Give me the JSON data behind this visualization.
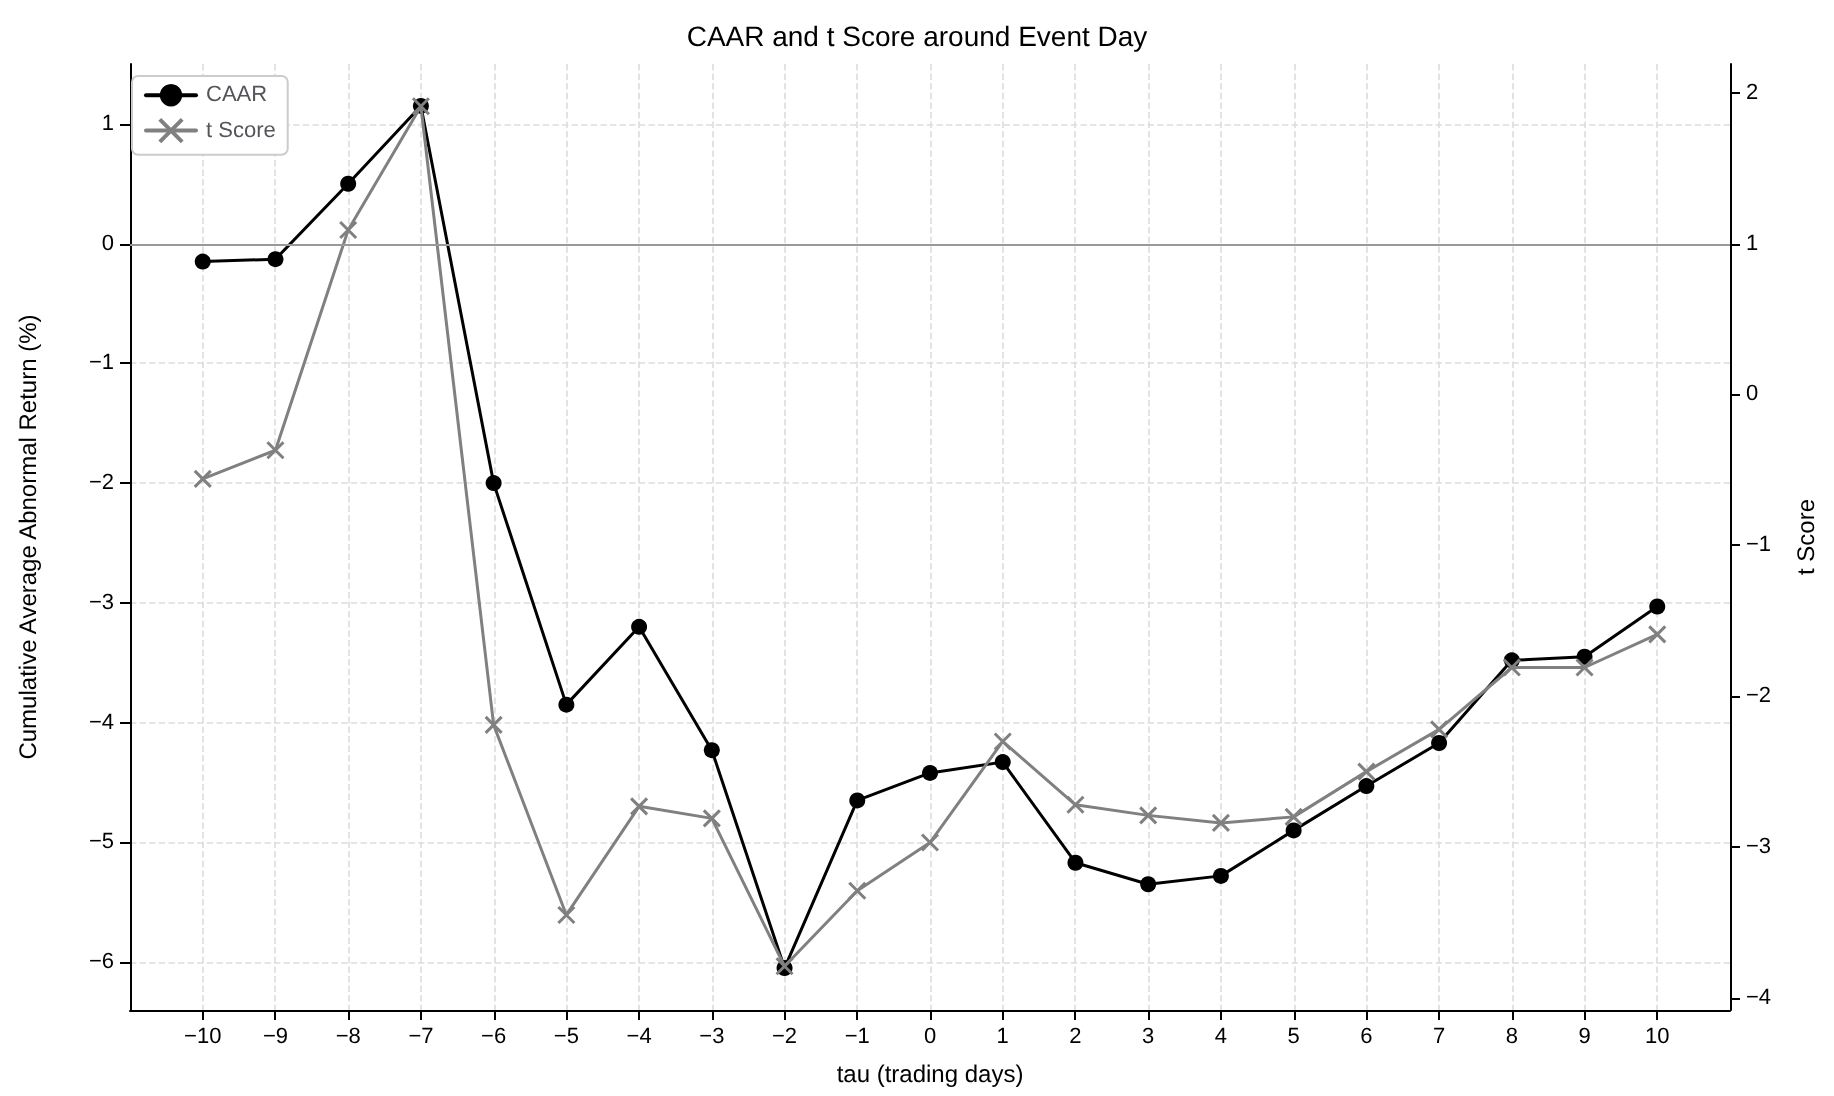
{
  "chart_data": {
    "type": "line",
    "title": "CAAR and t Score around Event Day",
    "xlabel": "tau (trading days)",
    "ylabel": "Cumulative Average Abnormal Return (%)",
    "y2label": "t Score",
    "x": [
      -10,
      -9,
      -8,
      -7,
      -6,
      -5,
      -4,
      -3,
      -2,
      -1,
      0,
      1,
      2,
      3,
      4,
      5,
      6,
      7,
      8,
      9,
      10
    ],
    "series": [
      {
        "name": "CAAR",
        "color": "#000000",
        "marker": "circle",
        "values": [
          -0.15,
          -0.13,
          0.5,
          1.15,
          -2.0,
          -3.85,
          -3.2,
          -4.23,
          -6.05,
          -4.65,
          -4.42,
          -4.33,
          -5.17,
          -5.35,
          -5.28,
          -4.9,
          -4.53,
          -4.17,
          -3.48,
          -3.45,
          -3.03
        ]
      },
      {
        "name": "t Score",
        "color": "#808080",
        "marker": "cross",
        "axis": "y2",
        "values": [
          -0.56,
          -0.37,
          1.09,
          1.91,
          -2.19,
          -3.45,
          -2.73,
          -2.81,
          -3.79,
          -3.29,
          -2.97,
          -2.3,
          -2.72,
          -2.79,
          -2.84,
          -2.8,
          -2.5,
          -2.22,
          -1.81,
          -1.81,
          -1.59
        ]
      }
    ],
    "xlim": [
      -11,
      11
    ],
    "xticks": [
      -10,
      -9,
      -8,
      -7,
      -6,
      -5,
      -4,
      -3,
      -2,
      -1,
      0,
      1,
      2,
      3,
      4,
      5,
      6,
      7,
      8,
      9,
      10
    ],
    "ylim": [
      -6.4,
      1.5
    ],
    "yticks": [
      -6,
      -5,
      -4,
      -3,
      -2,
      -1,
      0,
      1
    ],
    "y2lim": [
      -4.08,
      2.19
    ],
    "y2ticks": [
      -4,
      -3,
      -2,
      -1,
      0,
      1,
      2
    ],
    "ref_lines": [
      {
        "axis": "y",
        "value": 0,
        "color": "#999999"
      }
    ],
    "grid": true,
    "legend": "top left",
    "line_style": "solid"
  }
}
